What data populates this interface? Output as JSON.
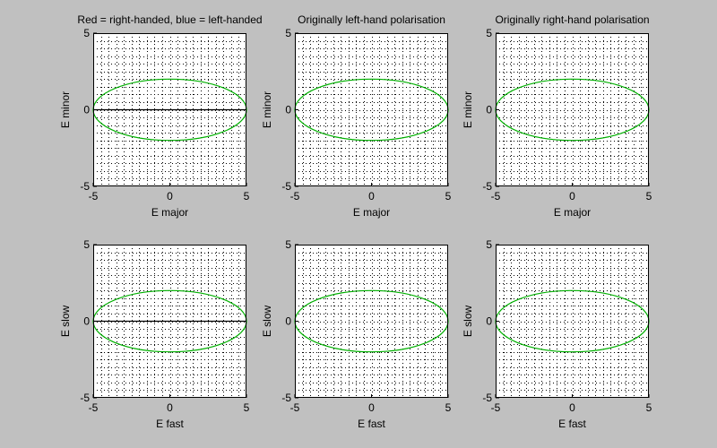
{
  "figure": {
    "background": "#c0c0c0"
  },
  "chart_data": [
    {
      "type": "line",
      "title": "Red = right-handed, blue = left-handed",
      "xlabel": "E major",
      "ylabel": "E minor",
      "xlim": [
        -5,
        5
      ],
      "ylim": [
        -5,
        5
      ],
      "xticks": [
        -5,
        0,
        5
      ],
      "yticks": [
        -5,
        0,
        5
      ],
      "grid": true,
      "series": [
        {
          "shape": "ellipse",
          "cx": 0,
          "cy": 0,
          "rx": 5,
          "ry": 2,
          "color": "#00b000"
        },
        {
          "shape": "line",
          "x": [
            -5,
            5
          ],
          "y": [
            0,
            0
          ],
          "color": "#000000"
        }
      ]
    },
    {
      "type": "line",
      "title": "Originally left-hand polarisation",
      "xlabel": "E major",
      "ylabel": "E minor",
      "xlim": [
        -5,
        5
      ],
      "ylim": [
        -5,
        5
      ],
      "xticks": [
        -5,
        0,
        5
      ],
      "yticks": [
        -5,
        0,
        5
      ],
      "grid": true,
      "series": [
        {
          "shape": "ellipse",
          "cx": 0,
          "cy": 0,
          "rx": 5,
          "ry": 2,
          "color": "#00b000"
        }
      ]
    },
    {
      "type": "line",
      "title": "Originally right-hand polarisation",
      "xlabel": "E major",
      "ylabel": "E minor",
      "xlim": [
        -5,
        5
      ],
      "ylim": [
        -5,
        5
      ],
      "xticks": [
        -5,
        0,
        5
      ],
      "yticks": [
        -5,
        0,
        5
      ],
      "grid": true,
      "series": [
        {
          "shape": "ellipse",
          "cx": 0,
          "cy": 0,
          "rx": 5,
          "ry": 2,
          "color": "#00b000"
        }
      ]
    },
    {
      "type": "line",
      "title": "",
      "xlabel": "E fast",
      "ylabel": "E slow",
      "xlim": [
        -5,
        5
      ],
      "ylim": [
        -5,
        5
      ],
      "xticks": [
        -5,
        0,
        5
      ],
      "yticks": [
        -5,
        0,
        5
      ],
      "grid": true,
      "series": [
        {
          "shape": "ellipse",
          "cx": 0,
          "cy": 0,
          "rx": 5,
          "ry": 2,
          "color": "#00b000"
        },
        {
          "shape": "line",
          "x": [
            -5,
            5
          ],
          "y": [
            0,
            0
          ],
          "color": "#000000"
        }
      ]
    },
    {
      "type": "line",
      "title": "",
      "xlabel": "E fast",
      "ylabel": "E slow",
      "xlim": [
        -5,
        5
      ],
      "ylim": [
        -5,
        5
      ],
      "xticks": [
        -5,
        0,
        5
      ],
      "yticks": [
        -5,
        0,
        5
      ],
      "grid": true,
      "series": [
        {
          "shape": "ellipse",
          "cx": 0,
          "cy": 0,
          "rx": 5,
          "ry": 2,
          "color": "#00b000"
        }
      ]
    },
    {
      "type": "line",
      "title": "",
      "xlabel": "E fast",
      "ylabel": "E slow",
      "xlim": [
        -5,
        5
      ],
      "ylim": [
        -5,
        5
      ],
      "xticks": [
        -5,
        0,
        5
      ],
      "yticks": [
        -5,
        0,
        5
      ],
      "grid": true,
      "series": [
        {
          "shape": "ellipse",
          "cx": 0,
          "cy": 0,
          "rx": 5,
          "ry": 2,
          "color": "#00b000"
        }
      ]
    }
  ]
}
